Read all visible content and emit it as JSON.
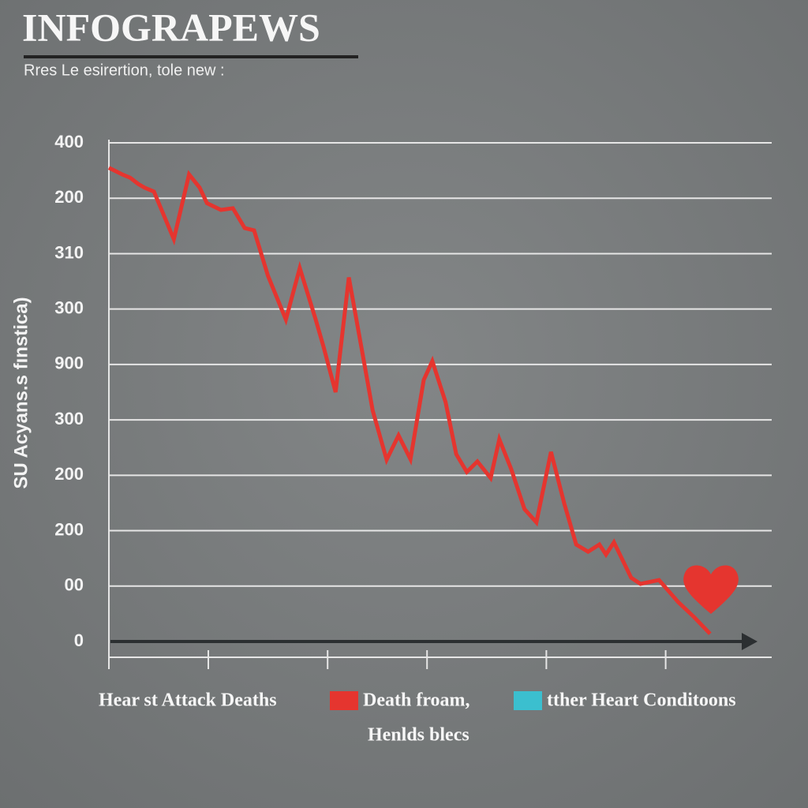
{
  "chart_data": {
    "type": "line",
    "title": "INFOGRAPEWS",
    "subtitle": "Rres Le esirertion, tole new :",
    "y_label": "SU Acyans.s fınstica)",
    "xlim": [
      0,
      100
    ],
    "xticks": [
      15,
      33,
      48,
      66,
      84
    ],
    "ylim": [
      0,
      9
    ],
    "yticks": [
      {
        "value": 0,
        "label": "0"
      },
      {
        "value": 1,
        "label": "00"
      },
      {
        "value": 2,
        "label": "200"
      },
      {
        "value": 3,
        "label": "200"
      },
      {
        "value": 4,
        "label": "300"
      },
      {
        "value": 5,
        "label": "900"
      },
      {
        "value": 6,
        "label": "300"
      },
      {
        "value": 7,
        "label": "310"
      },
      {
        "value": 8,
        "label": "200"
      },
      {
        "value": 9,
        "label": "400"
      }
    ],
    "grid": true,
    "x": [
      0,
      2.0,
      3.2,
      4.4,
      5.4,
      6.8,
      9.8,
      12.1,
      13.7,
      14.8,
      16.9,
      18.7,
      20.5,
      21.9,
      24.0,
      26.7,
      28.8,
      31.2,
      32.4,
      34.2,
      36.2,
      38.1,
      39.8,
      41.9,
      43.7,
      45.5,
      47.5,
      48.8,
      50.8,
      52.4,
      54.0,
      55.6,
      57.6,
      58.9,
      60.7,
      62.7,
      64.5,
      66.7,
      68.7,
      70.5,
      72.3,
      74.0,
      75.0,
      76.2,
      78.8,
      80.2,
      83.0,
      85.9,
      88.3,
      90.7
    ],
    "series": [
      {
        "color": "#e5352f",
        "values": [
          8.55,
          8.43,
          8.37,
          8.26,
          8.19,
          8.12,
          7.26,
          8.43,
          8.19,
          7.91,
          7.79,
          7.82,
          7.46,
          7.42,
          6.6,
          5.81,
          6.74,
          5.81,
          5.31,
          4.5,
          6.57,
          5.31,
          4.17,
          3.28,
          3.72,
          3.29,
          4.72,
          5.06,
          4.32,
          3.38,
          3.06,
          3.25,
          2.95,
          3.65,
          3.11,
          2.39,
          2.15,
          3.42,
          2.49,
          1.75,
          1.62,
          1.75,
          1.57,
          1.79,
          1.15,
          1.04,
          1.11,
          0.71,
          0.44,
          0.14
        ]
      }
    ],
    "legend_items": [
      {
        "label": "Hear st Attack Deaths"
      },
      {
        "label": "Death froam,",
        "color": "#e5352f"
      },
      {
        "label": "tther Heart Conditoons",
        "color": "#3bbfcf"
      }
    ],
    "legend_note": "Henlds blecs"
  }
}
